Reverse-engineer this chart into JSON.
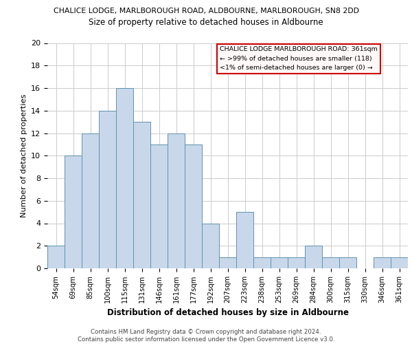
{
  "title1": "CHALICE LODGE, MARLBOROUGH ROAD, ALDBOURNE, MARLBOROUGH, SN8 2DD",
  "title2": "Size of property relative to detached houses in Aldbourne",
  "xlabel": "Distribution of detached houses by size in Aldbourne",
  "ylabel": "Number of detached properties",
  "categories": [
    "54sqm",
    "69sqm",
    "85sqm",
    "100sqm",
    "115sqm",
    "131sqm",
    "146sqm",
    "161sqm",
    "177sqm",
    "192sqm",
    "207sqm",
    "223sqm",
    "238sqm",
    "253sqm",
    "269sqm",
    "284sqm",
    "300sqm",
    "315sqm",
    "330sqm",
    "346sqm",
    "361sqm"
  ],
  "values": [
    2,
    10,
    12,
    14,
    16,
    13,
    11,
    12,
    11,
    4,
    1,
    5,
    1,
    1,
    1,
    2,
    1,
    1,
    0,
    1,
    1
  ],
  "bar_color": "#c8d8ea",
  "bar_edge_color": "#6090b0",
  "ylim": [
    0,
    20
  ],
  "yticks": [
    0,
    2,
    4,
    6,
    8,
    10,
    12,
    14,
    16,
    18,
    20
  ],
  "annotation_box_text": "CHALICE LODGE MARLBOROUGH ROAD: 361sqm\n← >99% of detached houses are smaller (118)\n<1% of semi-detached houses are larger (0) →",
  "annotation_box_facecolor": "#fff8f8",
  "annotation_box_edgecolor": "#cc0000",
  "footer_text": "Contains HM Land Registry data © Crown copyright and database right 2024.\nContains public sector information licensed under the Open Government Licence v3.0.",
  "background_color": "#ffffff",
  "grid_color": "#cccccc"
}
